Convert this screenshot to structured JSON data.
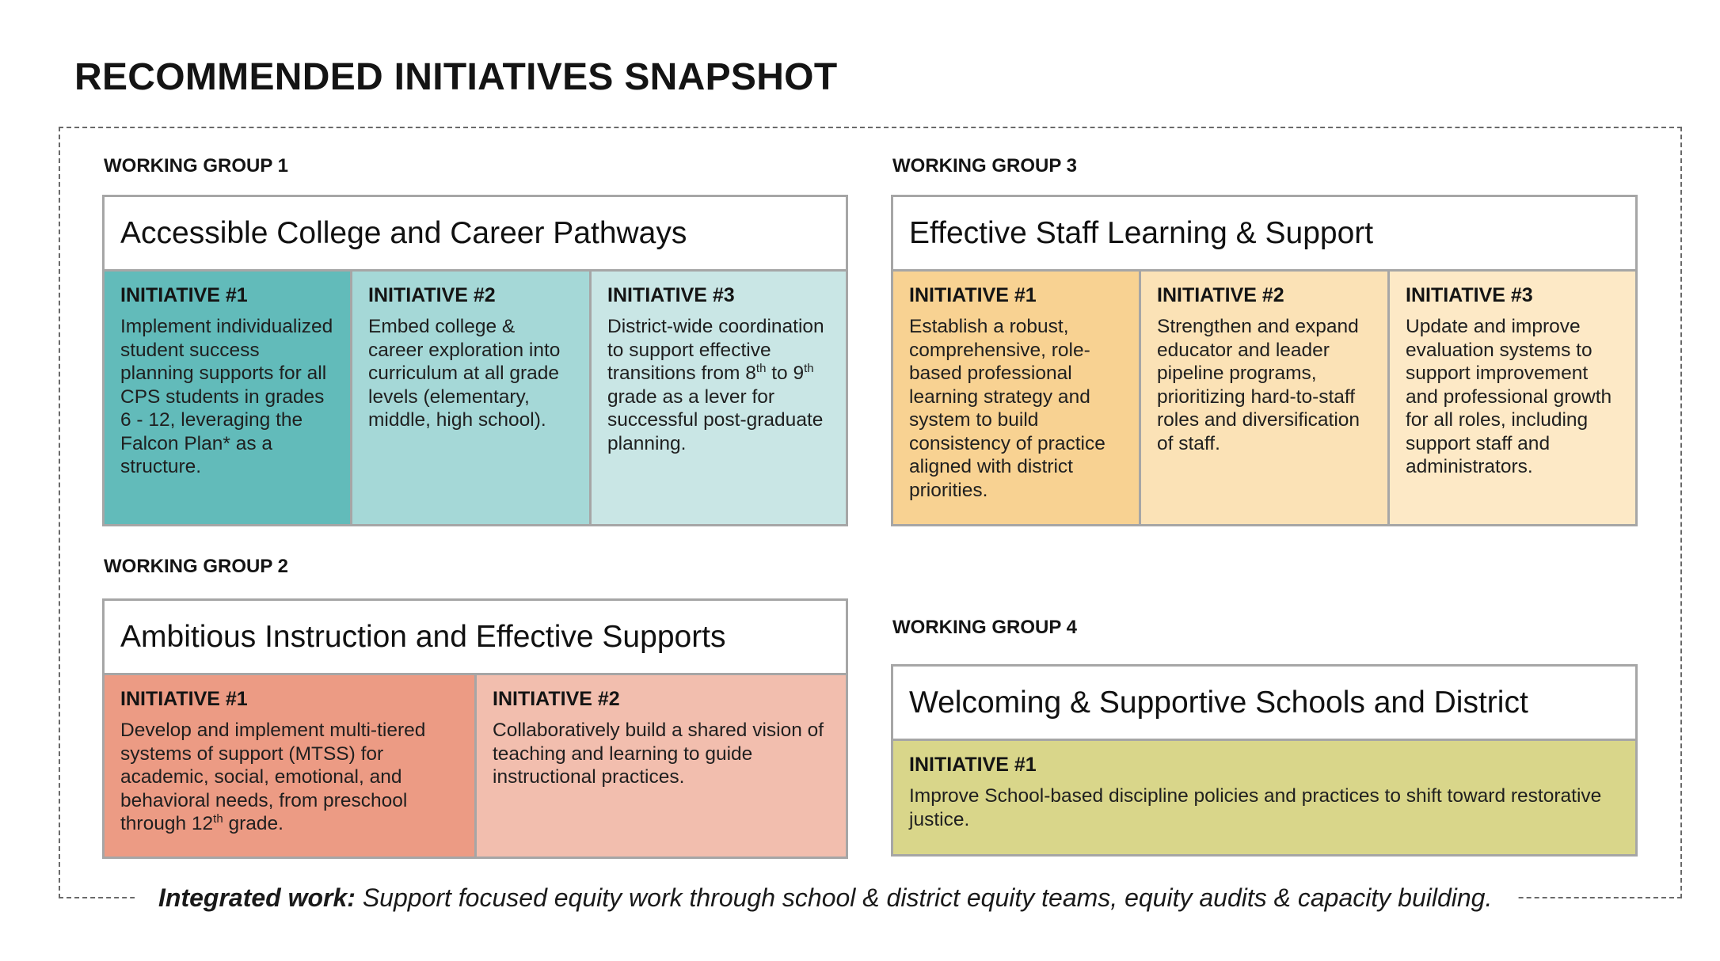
{
  "page": {
    "title": "RECOMMENDED INITIATIVES SNAPSHOT"
  },
  "integrated": {
    "label": "Integrated work:",
    "text": " Support focused equity work through school & district equity teams, equity audits & capacity building."
  },
  "groups": [
    {
      "label": "WORKING GROUP 1",
      "title": "Accessible College and Career Pathways",
      "initiatives": [
        {
          "label": "INITIATIVE #1",
          "text": "Implement individualized student success planning supports for all CPS students in grades 6 - 12, leveraging the Falcon Plan* as a structure.",
          "color": "#62bbba"
        },
        {
          "label": "INITIATIVE #2",
          "text": "Embed college & career exploration into curriculum at all grade levels (elementary, middle, high school).",
          "color": "#a5d8d7"
        },
        {
          "label": "INITIATIVE #3",
          "text_before": "District-wide coordination to support effective transitions from 8",
          "sup1": "th",
          "text_mid": " to 9",
          "sup2": "th",
          "text_after": " grade as a lever for successful post-graduate planning.",
          "color": "#c9e6e5"
        }
      ]
    },
    {
      "label": "WORKING GROUP 2",
      "title": "Ambitious Instruction and Effective Supports",
      "initiatives": [
        {
          "label": "INITIATIVE #1",
          "text_before": "Develop and implement multi-tiered systems of support (MTSS) for academic, social, emotional, and behavioral needs, from preschool through 12",
          "sup": "th",
          "text_after": " grade.",
          "color": "#ec9b84"
        },
        {
          "label": "INITIATIVE #2",
          "text": "Collaboratively build a shared vision of teaching and learning to guide instructional practices.",
          "color": "#f2beae"
        }
      ]
    },
    {
      "label": "WORKING GROUP 3",
      "title": "Effective Staff Learning & Support",
      "initiatives": [
        {
          "label": "INITIATIVE #1",
          "text": "Establish a robust, comprehensive, role-based professional learning strategy and system to build consistency of practice aligned with district priorities.",
          "color": "#f8d292"
        },
        {
          "label": "INITIATIVE #2",
          "text": "Strengthen and expand educator and leader pipeline programs, prioritizing hard-to-staff roles and diversification of staff.",
          "color": "#fbe2b6"
        },
        {
          "label": "INITIATIVE #3",
          "text": "Update and improve evaluation systems to support improvement and professional growth for all roles, including support staff and administrators.",
          "color": "#fde9c6"
        }
      ]
    },
    {
      "label": "WORKING GROUP 4",
      "title": "Welcoming & Supportive Schools and District",
      "initiatives": [
        {
          "label": "INITIATIVE #1",
          "text": "Improve School-based discipline policies and practices to shift toward restorative justice.",
          "color": "#d9d68a"
        }
      ]
    }
  ]
}
